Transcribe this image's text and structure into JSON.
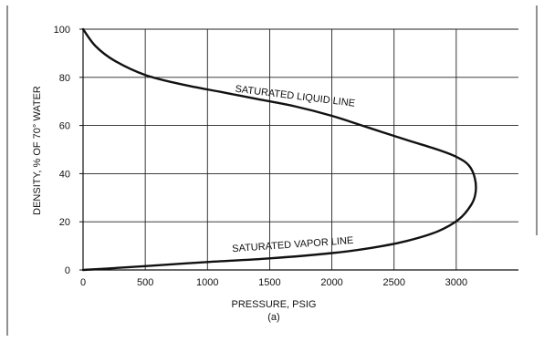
{
  "chart_data": {
    "type": "line",
    "xlabel": "PRESSURE, PSIG",
    "ylabel": "DENSITY, % OF 70° WATER",
    "caption": "(a)",
    "xlim": [
      0,
      3500
    ],
    "ylim": [
      0,
      100
    ],
    "x_ticks": [
      0,
      500,
      1000,
      1500,
      2000,
      2500,
      3000
    ],
    "y_ticks": [
      0,
      20,
      40,
      60,
      80,
      100
    ],
    "grid": true,
    "curve_points": [
      [
        0,
        100
      ],
      [
        100,
        93
      ],
      [
        250,
        87
      ],
      [
        500,
        81
      ],
      [
        800,
        77
      ],
      [
        1100,
        74
      ],
      [
        1400,
        71
      ],
      [
        1700,
        68
      ],
      [
        2000,
        64
      ],
      [
        2300,
        59
      ],
      [
        2600,
        54
      ],
      [
        2850,
        50
      ],
      [
        3000,
        47
      ],
      [
        3100,
        43.5
      ],
      [
        3150,
        38
      ],
      [
        3155,
        32
      ],
      [
        3120,
        27
      ],
      [
        3020,
        21
      ],
      [
        2850,
        16
      ],
      [
        2600,
        12
      ],
      [
        2300,
        9
      ],
      [
        2000,
        7
      ],
      [
        1500,
        4.8
      ],
      [
        1000,
        3.3
      ],
      [
        500,
        1.6
      ],
      [
        200,
        0.6
      ],
      [
        0,
        0
      ]
    ],
    "annotations": [
      {
        "text": "SATURATED LIQUID LINE",
        "x": 1220,
        "y": 74,
        "angle_deg": 7
      },
      {
        "text": "SATURATED VAPOR LINE",
        "x": 1200,
        "y": 7.5,
        "angle_deg": -4
      }
    ]
  }
}
